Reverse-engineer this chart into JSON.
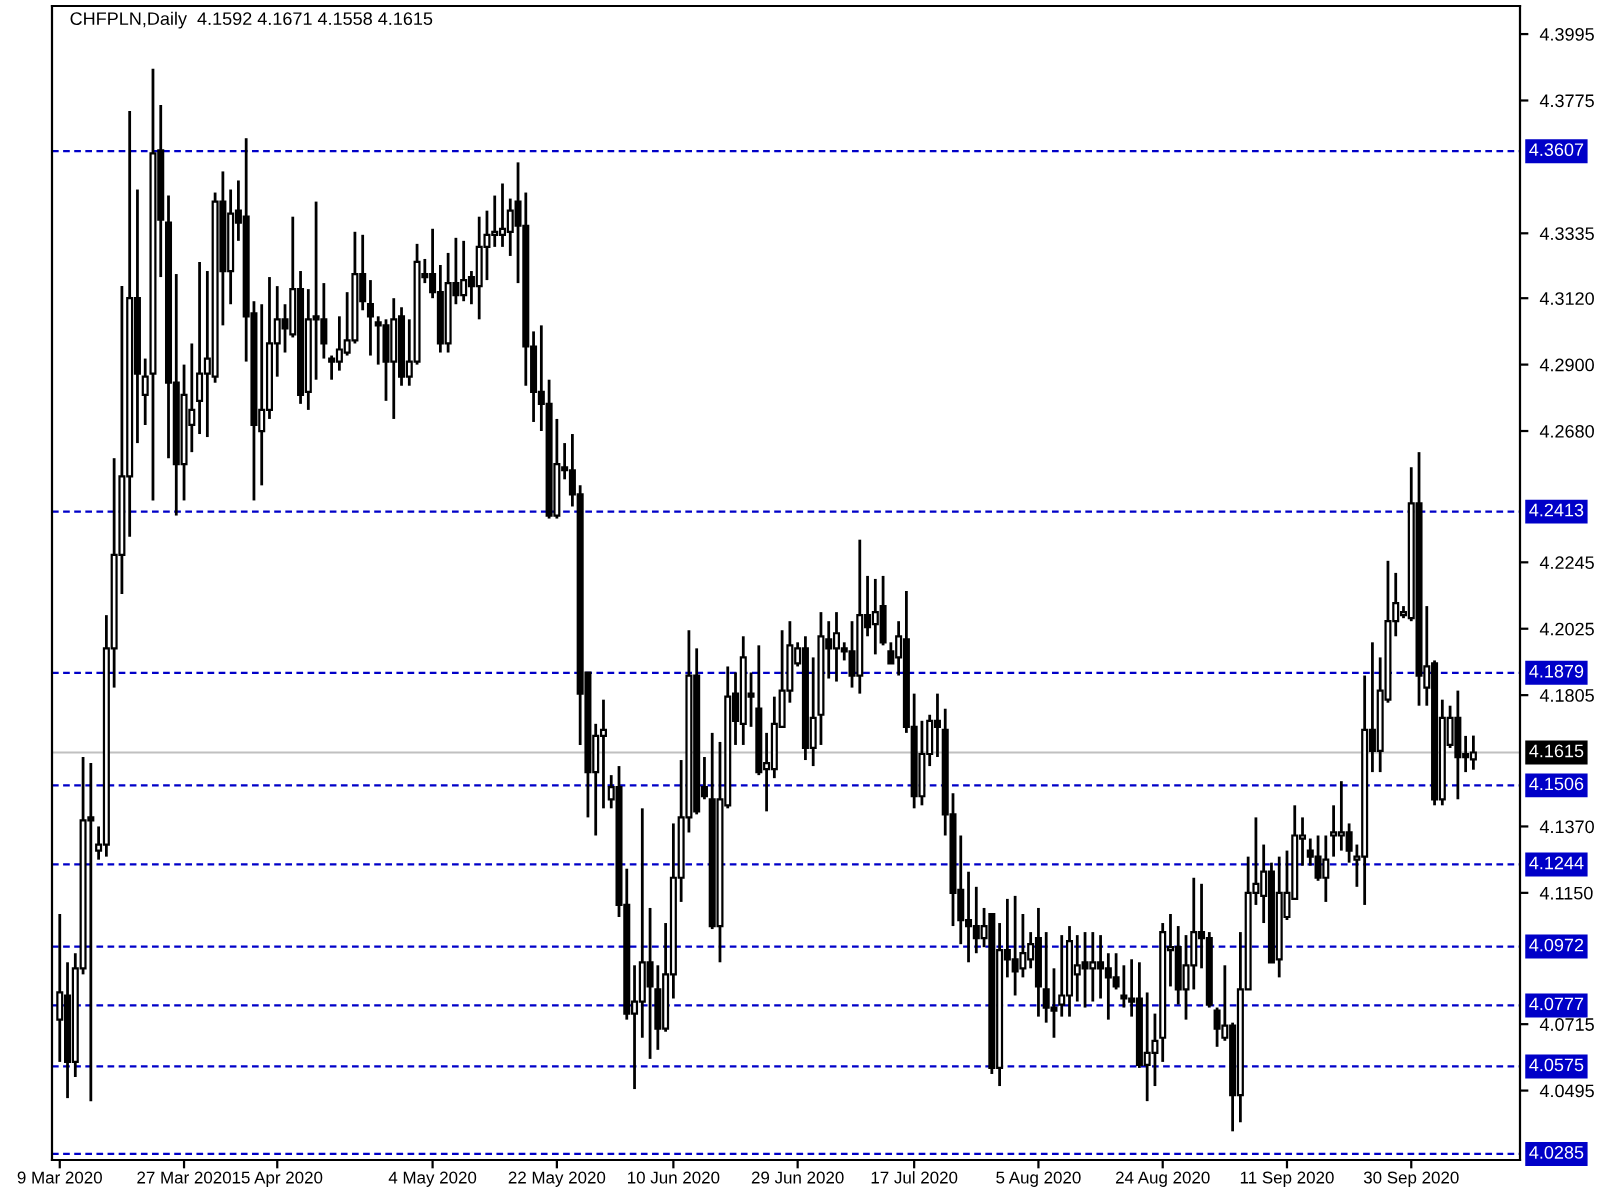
{
  "chart_data": {
    "type": "candlestick",
    "title": "CHFPLN,Daily  4.1592 4.1671 4.1558 4.1615",
    "color": "#000000",
    "categories": [
      "9 Mar 2020",
      null,
      null,
      null,
      null,
      null,
      null,
      null,
      null,
      null,
      null,
      null,
      null,
      null,
      null,
      null,
      "27 Mar 2020",
      null,
      null,
      null,
      null,
      null,
      null,
      null,
      null,
      null,
      null,
      null,
      "15 Apr 2020",
      null,
      null,
      null,
      null,
      null,
      null,
      null,
      null,
      null,
      null,
      null,
      null,
      null,
      null,
      null,
      null,
      null,
      null,
      null,
      "4 May 2020",
      null,
      null,
      null,
      null,
      null,
      null,
      null,
      null,
      null,
      null,
      null,
      null,
      null,
      null,
      null,
      "22 May 2020",
      null,
      null,
      null,
      null,
      null,
      null,
      null,
      null,
      null,
      null,
      null,
      null,
      null,
      null,
      "10 Jun 2020",
      null,
      null,
      null,
      null,
      null,
      null,
      null,
      null,
      null,
      null,
      null,
      null,
      null,
      null,
      null,
      "29 Jun 2020",
      null,
      null,
      null,
      null,
      null,
      null,
      null,
      null,
      null,
      null,
      null,
      null,
      null,
      null,
      "17 Jul 2020",
      null,
      null,
      null,
      null,
      null,
      null,
      null,
      null,
      null,
      null,
      null,
      null,
      null,
      null,
      null,
      "5 Aug 2020",
      null,
      null,
      null,
      null,
      null,
      null,
      null,
      null,
      null,
      null,
      null,
      null,
      null,
      null,
      null,
      "24 Aug 2020",
      null,
      null,
      null,
      null,
      null,
      null,
      null,
      null,
      null,
      null,
      null,
      null,
      null,
      null,
      null,
      "11 Sep 2020",
      null,
      null,
      null,
      null,
      null,
      null,
      null,
      null,
      null,
      null,
      null,
      null,
      null,
      null,
      null,
      "30 Sep 2020",
      null,
      null,
      null,
      null,
      null,
      null,
      null,
      null
    ],
    "ohlc": [
      [
        4.073,
        4.108,
        4.059,
        4.082
      ],
      [
        4.081,
        4.092,
        4.047,
        4.059
      ],
      [
        4.059,
        4.095,
        4.054,
        4.09
      ],
      [
        4.09,
        4.16,
        4.088,
        4.139
      ],
      [
        4.14,
        4.158,
        4.046,
        4.139
      ],
      [
        4.129,
        4.137,
        4.126,
        4.131
      ],
      [
        4.131,
        4.207,
        4.127,
        4.196
      ],
      [
        4.196,
        4.259,
        4.183,
        4.227
      ],
      [
        4.227,
        4.316,
        4.214,
        4.253
      ],
      [
        4.253,
        4.374,
        4.233,
        4.312
      ],
      [
        4.312,
        4.348,
        4.264,
        4.287
      ],
      [
        4.28,
        4.292,
        4.27,
        4.286
      ],
      [
        4.287,
        4.388,
        4.245,
        4.36
      ],
      [
        4.361,
        4.376,
        4.319,
        4.338
      ],
      [
        4.337,
        4.346,
        4.259,
        4.284
      ],
      [
        4.284,
        4.32,
        4.24,
        4.257
      ],
      [
        4.257,
        4.29,
        4.245,
        4.28
      ],
      [
        4.27,
        4.297,
        4.261,
        4.275
      ],
      [
        4.278,
        4.324,
        4.267,
        4.287
      ],
      [
        4.287,
        4.321,
        4.266,
        4.292
      ],
      [
        4.286,
        4.347,
        4.284,
        4.344
      ],
      [
        4.344,
        4.354,
        4.303,
        4.321
      ],
      [
        4.321,
        4.348,
        4.31,
        4.34
      ],
      [
        4.341,
        4.351,
        4.331,
        4.337
      ],
      [
        4.339,
        4.365,
        4.291,
        4.306
      ],
      [
        4.307,
        4.311,
        4.245,
        4.27
      ],
      [
        4.268,
        4.31,
        4.25,
        4.275
      ],
      [
        4.275,
        4.319,
        4.272,
        4.297
      ],
      [
        4.297,
        4.316,
        4.286,
        4.305
      ],
      [
        4.305,
        4.31,
        4.294,
        4.302
      ],
      [
        4.3,
        4.339,
        4.299,
        4.315
      ],
      [
        4.315,
        4.321,
        4.277,
        4.28
      ],
      [
        4.281,
        4.315,
        4.275,
        4.305
      ],
      [
        4.306,
        4.344,
        4.285,
        4.305
      ],
      [
        4.305,
        4.317,
        4.292,
        4.297
      ],
      [
        4.292,
        4.293,
        4.285,
        4.291
      ],
      [
        4.291,
        4.306,
        4.288,
        4.295
      ],
      [
        4.294,
        4.314,
        4.293,
        4.298
      ],
      [
        4.298,
        4.334,
        4.297,
        4.32
      ],
      [
        4.32,
        4.333,
        4.308,
        4.311
      ],
      [
        4.31,
        4.318,
        4.293,
        4.306
      ],
      [
        4.304,
        4.306,
        4.29,
        4.303
      ],
      [
        4.303,
        4.305,
        4.278,
        4.291
      ],
      [
        4.291,
        4.312,
        4.272,
        4.305
      ],
      [
        4.306,
        4.309,
        4.283,
        4.286
      ],
      [
        4.286,
        4.305,
        4.283,
        4.291
      ],
      [
        4.291,
        4.33,
        4.29,
        4.324
      ],
      [
        4.32,
        4.325,
        4.317,
        4.319
      ],
      [
        4.32,
        4.335,
        4.312,
        4.314
      ],
      [
        4.314,
        4.323,
        4.294,
        4.297
      ],
      [
        4.297,
        4.327,
        4.294,
        4.317
      ],
      [
        4.317,
        4.332,
        4.31,
        4.313
      ],
      [
        4.313,
        4.331,
        4.311,
        4.318
      ],
      [
        4.319,
        4.321,
        4.31,
        4.316
      ],
      [
        4.316,
        4.339,
        4.305,
        4.329
      ],
      [
        4.329,
        4.341,
        4.318,
        4.333
      ],
      [
        4.333,
        4.346,
        4.329,
        4.334
      ],
      [
        4.333,
        4.35,
        4.329,
        4.335
      ],
      [
        4.334,
        4.345,
        4.326,
        4.341
      ],
      [
        4.344,
        4.357,
        4.317,
        4.336
      ],
      [
        4.336,
        4.347,
        4.283,
        4.296
      ],
      [
        4.296,
        4.301,
        4.271,
        4.281
      ],
      [
        4.281,
        4.303,
        4.268,
        4.277
      ],
      [
        4.277,
        4.285,
        4.239,
        4.24
      ],
      [
        4.24,
        4.272,
        4.239,
        4.257
      ],
      [
        4.256,
        4.264,
        4.252,
        4.255
      ],
      [
        4.255,
        4.267,
        4.243,
        4.247
      ],
      [
        4.247,
        4.25,
        4.164,
        4.181
      ],
      [
        4.188,
        4.188,
        4.14,
        4.155
      ],
      [
        4.155,
        4.171,
        4.134,
        4.167
      ],
      [
        4.167,
        4.179,
        4.143,
        4.169
      ],
      [
        4.146,
        4.154,
        4.143,
        4.15
      ],
      [
        4.15,
        4.157,
        4.107,
        4.111
      ],
      [
        4.111,
        4.123,
        4.073,
        4.075
      ],
      [
        4.075,
        4.091,
        4.05,
        4.079
      ],
      [
        4.079,
        4.143,
        4.067,
        4.092
      ],
      [
        4.092,
        4.11,
        4.06,
        4.084
      ],
      [
        4.083,
        4.091,
        4.063,
        4.07
      ],
      [
        4.07,
        4.105,
        4.069,
        4.088
      ],
      [
        4.088,
        4.138,
        4.08,
        4.12
      ],
      [
        4.12,
        4.159,
        4.112,
        4.14
      ],
      [
        4.14,
        4.202,
        4.135,
        4.187
      ],
      [
        4.187,
        4.196,
        4.141,
        4.142
      ],
      [
        4.15,
        4.16,
        4.146,
        4.147
      ],
      [
        4.146,
        4.168,
        4.103,
        4.104
      ],
      [
        4.104,
        4.165,
        4.092,
        4.146
      ],
      [
        4.144,
        4.19,
        4.143,
        4.18
      ],
      [
        4.181,
        4.188,
        4.164,
        4.172
      ],
      [
        4.171,
        4.2,
        4.164,
        4.193
      ],
      [
        4.181,
        4.188,
        4.17,
        4.18
      ],
      [
        4.176,
        4.197,
        4.154,
        4.155
      ],
      [
        4.156,
        4.168,
        4.142,
        4.158
      ],
      [
        4.156,
        4.18,
        4.153,
        4.171
      ],
      [
        4.17,
        4.202,
        4.17,
        4.182
      ],
      [
        4.182,
        4.205,
        4.178,
        4.197
      ],
      [
        4.191,
        4.198,
        4.19,
        4.196
      ],
      [
        4.196,
        4.2,
        4.159,
        4.163
      ],
      [
        4.163,
        4.193,
        4.157,
        4.173
      ],
      [
        4.174,
        4.208,
        4.164,
        4.2
      ],
      [
        4.199,
        4.205,
        4.186,
        4.196
      ],
      [
        4.196,
        4.208,
        4.185,
        4.201
      ],
      [
        4.196,
        4.198,
        4.192,
        4.195
      ],
      [
        4.195,
        4.205,
        4.183,
        4.187
      ],
      [
        4.187,
        4.232,
        4.181,
        4.207
      ],
      [
        4.207,
        4.22,
        4.2,
        4.203
      ],
      [
        4.204,
        4.219,
        4.194,
        4.208
      ],
      [
        4.21,
        4.22,
        4.197,
        4.198
      ],
      [
        4.195,
        4.198,
        4.191,
        4.191
      ],
      [
        4.193,
        4.205,
        4.187,
        4.2
      ],
      [
        4.199,
        4.215,
        4.168,
        4.17
      ],
      [
        4.17,
        4.181,
        4.143,
        4.147
      ],
      [
        4.147,
        4.172,
        4.144,
        4.161
      ],
      [
        4.161,
        4.174,
        4.157,
        4.172
      ],
      [
        4.172,
        4.181,
        4.16,
        4.17
      ],
      [
        4.169,
        4.176,
        4.134,
        4.141
      ],
      [
        4.141,
        4.148,
        4.104,
        4.115
      ],
      [
        4.116,
        4.134,
        4.098,
        4.106
      ],
      [
        4.106,
        4.122,
        4.092,
        4.104
      ],
      [
        4.104,
        4.117,
        4.095,
        4.1
      ],
      [
        4.1,
        4.11,
        4.097,
        4.104
      ],
      [
        4.108,
        4.108,
        4.055,
        4.057
      ],
      [
        4.057,
        4.105,
        4.051,
        4.096
      ],
      [
        4.096,
        4.113,
        4.087,
        4.093
      ],
      [
        4.093,
        4.114,
        4.081,
        4.089
      ],
      [
        4.09,
        4.108,
        4.087,
        4.095
      ],
      [
        4.093,
        4.102,
        4.09,
        4.098
      ],
      [
        4.1,
        4.11,
        4.074,
        4.084
      ],
      [
        4.083,
        4.102,
        4.072,
        4.077
      ],
      [
        4.077,
        4.09,
        4.067,
        4.076
      ],
      [
        4.078,
        4.101,
        4.074,
        4.081
      ],
      [
        4.081,
        4.104,
        4.074,
        4.099
      ],
      [
        4.088,
        4.101,
        4.079,
        4.091
      ],
      [
        4.092,
        4.102,
        4.077,
        4.09
      ],
      [
        4.09,
        4.102,
        4.079,
        4.092
      ],
      [
        4.092,
        4.101,
        4.08,
        4.09
      ],
      [
        4.09,
        4.095,
        4.073,
        4.087
      ],
      [
        4.087,
        4.095,
        4.083,
        4.084
      ],
      [
        4.081,
        4.091,
        4.077,
        4.08
      ],
      [
        4.08,
        4.093,
        4.074,
        4.079
      ],
      [
        4.08,
        4.092,
        4.057,
        4.058
      ],
      [
        4.058,
        4.082,
        4.046,
        4.062
      ],
      [
        4.062,
        4.075,
        4.051,
        4.066
      ],
      [
        4.067,
        4.105,
        4.059,
        4.102
      ],
      [
        4.096,
        4.108,
        4.084,
        4.097
      ],
      [
        4.097,
        4.104,
        4.078,
        4.083
      ],
      [
        4.083,
        4.101,
        4.073,
        4.091
      ],
      [
        4.091,
        4.12,
        4.083,
        4.102
      ],
      [
        4.102,
        4.118,
        4.09,
        4.1
      ],
      [
        4.1,
        4.102,
        4.077,
        4.078
      ],
      [
        4.076,
        4.077,
        4.064,
        4.07
      ],
      [
        4.067,
        4.091,
        4.066,
        4.071
      ],
      [
        4.071,
        4.072,
        4.036,
        4.048
      ],
      [
        4.048,
        4.102,
        4.039,
        4.083
      ],
      [
        4.083,
        4.127,
        4.083,
        4.115
      ],
      [
        4.115,
        4.14,
        4.111,
        4.118
      ],
      [
        4.114,
        4.131,
        4.105,
        4.122
      ],
      [
        4.122,
        4.125,
        4.092,
        4.092
      ],
      [
        4.093,
        4.127,
        4.087,
        4.115
      ],
      [
        4.107,
        4.129,
        4.106,
        4.115
      ],
      [
        4.113,
        4.144,
        4.113,
        4.134
      ],
      [
        4.133,
        4.14,
        4.124,
        4.134
      ],
      [
        4.129,
        4.133,
        4.124,
        4.127
      ],
      [
        4.127,
        4.134,
        4.119,
        4.12
      ],
      [
        4.12,
        4.134,
        4.112,
        4.126
      ],
      [
        4.134,
        4.144,
        4.127,
        4.135
      ],
      [
        4.134,
        4.152,
        4.129,
        4.135
      ],
      [
        4.135,
        4.138,
        4.125,
        4.129
      ],
      [
        4.126,
        4.131,
        4.117,
        4.127
      ],
      [
        4.127,
        4.187,
        4.111,
        4.169
      ],
      [
        4.169,
        4.198,
        4.155,
        4.162
      ],
      [
        4.162,
        4.193,
        4.155,
        4.182
      ],
      [
        4.179,
        4.225,
        4.178,
        4.205
      ],
      [
        4.205,
        4.221,
        4.2,
        4.211
      ],
      [
        4.207,
        4.21,
        4.206,
        4.208
      ],
      [
        4.206,
        4.256,
        4.205,
        4.244
      ],
      [
        4.244,
        4.261,
        4.177,
        4.187
      ],
      [
        4.183,
        4.21,
        4.177,
        4.19
      ],
      [
        4.191,
        4.192,
        4.144,
        4.146
      ],
      [
        4.146,
        4.179,
        4.144,
        4.173
      ],
      [
        4.164,
        4.177,
        4.163,
        4.173
      ],
      [
        4.173,
        4.182,
        4.146,
        4.16
      ],
      [
        4.161,
        4.167,
        4.155,
        4.16
      ],
      [
        4.1592,
        4.1671,
        4.1558,
        4.1615
      ]
    ],
    "ylim": [
      4.0265,
      4.4088
    ],
    "yticks": [
      4.3995,
      4.3775,
      4.3335,
      {
        "value": 4.312,
        "label": "4.3120"
      },
      {
        "value": 4.29,
        "label": "4.2900"
      },
      {
        "value": 4.268,
        "label": "4.2680"
      },
      4.2245,
      4.2025,
      4.1805,
      {
        "value": 4.137,
        "label": "4.1370"
      },
      {
        "value": 4.115,
        "label": "4.1150"
      },
      4.0715,
      4.0495
    ],
    "ref_lines": [
      {
        "axis": "y",
        "value": 4.3607,
        "label": "4.3607",
        "color": "#0000c8",
        "line_style": "dashed"
      },
      {
        "axis": "y",
        "value": 4.2413,
        "label": "4.2413",
        "color": "#0000c8",
        "line_style": "dashed"
      },
      {
        "axis": "y",
        "value": 4.1879,
        "label": "4.1879",
        "color": "#0000c8",
        "line_style": "dashed"
      },
      {
        "axis": "y",
        "value": 4.1615,
        "label": "4.1615",
        "color": "#c0c0c0",
        "line_style": "solid"
      },
      {
        "axis": "y",
        "value": 4.1506,
        "label": "4.1506",
        "color": "#0000c8",
        "line_style": "dashed"
      },
      {
        "axis": "y",
        "value": 4.1244,
        "label": "4.1244",
        "color": "#0000c8",
        "line_style": "dashed"
      },
      {
        "axis": "y",
        "value": 4.0972,
        "label": "4.0972",
        "color": "#0000c8",
        "line_style": "dashed"
      },
      {
        "axis": "y",
        "value": 4.0777,
        "label": "4.0777",
        "color": "#0000c8",
        "line_style": "dashed"
      },
      {
        "axis": "y",
        "value": 4.0575,
        "label": "4.0575",
        "color": "#0000c8",
        "line_style": "dashed"
      },
      {
        "axis": "y",
        "value": 4.0285,
        "label": "4.0285",
        "color": "#0000c8",
        "line_style": "dashed"
      }
    ],
    "grid": false,
    "legend": false
  }
}
